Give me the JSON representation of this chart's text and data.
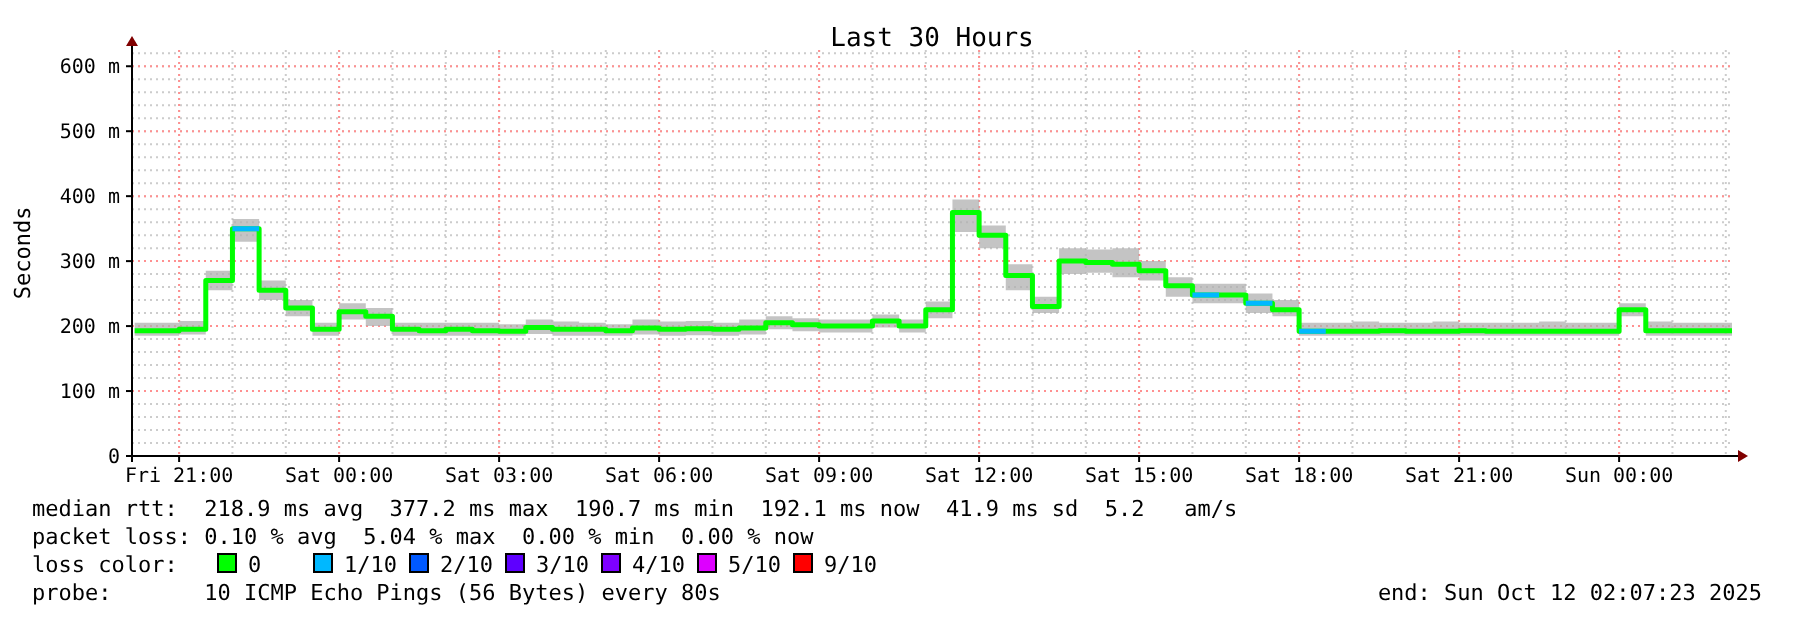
{
  "chart_data": {
    "type": "step",
    "title": "Last 30 Hours",
    "ylabel": "Seconds",
    "legend_title": "loss color:",
    "legend": "bottom",
    "grid": true,
    "annotations": [
      "median rtt:  218.9 ms avg  377.2 ms max  190.7 ms min  192.1 ms now  41.9 ms sd  5.2   am/s",
      "packet loss: 0.10 % avg  5.04 % max  0.00 % min  0.00 % now",
      "probe:       10 ICMP Echo Pings (56 Bytes) every 80s",
      "end: Sun Oct 12 02:07:23 2025"
    ],
    "x": [
      "2025-10-10T20:10",
      "2025-10-10T20:30",
      "2025-10-10T21:00",
      "2025-10-10T21:30",
      "2025-10-10T22:00",
      "2025-10-10T22:30",
      "2025-10-10T23:00",
      "2025-10-10T23:30",
      "2025-10-11T00:00",
      "2025-10-11T00:30",
      "2025-10-11T01:00",
      "2025-10-11T01:30",
      "2025-10-11T02:00",
      "2025-10-11T02:30",
      "2025-10-11T03:00",
      "2025-10-11T03:30",
      "2025-10-11T04:00",
      "2025-10-11T04:30",
      "2025-10-11T05:00",
      "2025-10-11T05:30",
      "2025-10-11T06:00",
      "2025-10-11T06:30",
      "2025-10-11T07:00",
      "2025-10-11T07:30",
      "2025-10-11T08:00",
      "2025-10-11T08:30",
      "2025-10-11T09:00",
      "2025-10-11T09:30",
      "2025-10-11T10:00",
      "2025-10-11T10:30",
      "2025-10-11T11:00",
      "2025-10-11T11:30",
      "2025-10-11T12:00",
      "2025-10-11T12:30",
      "2025-10-11T13:00",
      "2025-10-11T13:30",
      "2025-10-11T14:00",
      "2025-10-11T14:30",
      "2025-10-11T15:00",
      "2025-10-11T15:30",
      "2025-10-11T16:00",
      "2025-10-11T16:30",
      "2025-10-11T17:00",
      "2025-10-11T17:30",
      "2025-10-11T18:00",
      "2025-10-11T18:30",
      "2025-10-11T19:00",
      "2025-10-11T19:30",
      "2025-10-11T20:00",
      "2025-10-11T20:30",
      "2025-10-11T21:00",
      "2025-10-11T21:30",
      "2025-10-11T22:00",
      "2025-10-11T22:30",
      "2025-10-11T23:00",
      "2025-10-11T23:30",
      "2025-10-12T00:00",
      "2025-10-12T00:30",
      "2025-10-12T01:00",
      "2025-10-12T01:30",
      "2025-10-12T02:07"
    ],
    "xlim": [
      "2025-10-10T20:07",
      "2025-10-12T02:07"
    ],
    "xticks": [
      {
        "value": "2025-10-10T21:00",
        "label": "Fri 21:00"
      },
      {
        "value": "2025-10-11T00:00",
        "label": "Sat 00:00"
      },
      {
        "value": "2025-10-11T03:00",
        "label": "Sat 03:00"
      },
      {
        "value": "2025-10-11T06:00",
        "label": "Sat 06:00"
      },
      {
        "value": "2025-10-11T09:00",
        "label": "Sat 09:00"
      },
      {
        "value": "2025-10-11T12:00",
        "label": "Sat 12:00"
      },
      {
        "value": "2025-10-11T15:00",
        "label": "Sat 15:00"
      },
      {
        "value": "2025-10-11T18:00",
        "label": "Sat 18:00"
      },
      {
        "value": "2025-10-11T21:00",
        "label": "Sat 21:00"
      },
      {
        "value": "2025-10-12T00:00",
        "label": "Sun 00:00"
      }
    ],
    "ylim": [
      0,
      625
    ],
    "yticks": [
      {
        "value": 0,
        "label": "0"
      },
      {
        "value": 100,
        "label": "100 m"
      },
      {
        "value": 200,
        "label": "200 m"
      },
      {
        "value": 300,
        "label": "300 m"
      },
      {
        "value": 400,
        "label": "400 m"
      },
      {
        "value": 500,
        "label": "500 m"
      },
      {
        "value": 600,
        "label": "600 m"
      }
    ],
    "series": [
      {
        "name": "0",
        "color": "#00ff00",
        "values": [
          193,
          193,
          195,
          270,
          350,
          255,
          228,
          195,
          222,
          215,
          195,
          193,
          195,
          193,
          192,
          198,
          195,
          195,
          193,
          197,
          195,
          196,
          195,
          197,
          205,
          202,
          200,
          200,
          208,
          200,
          225,
          375,
          340,
          278,
          230,
          300,
          298,
          295,
          285,
          262,
          248,
          248,
          235,
          225,
          192,
          192,
          192,
          193,
          192,
          192,
          193,
          192,
          192,
          192,
          192,
          192,
          225,
          193,
          193,
          193,
          193
        ],
        "lower": [
          185,
          185,
          187,
          255,
          330,
          240,
          215,
          185,
          210,
          200,
          185,
          185,
          185,
          185,
          185,
          188,
          185,
          185,
          185,
          187,
          185,
          186,
          185,
          187,
          195,
          192,
          190,
          190,
          198,
          190,
          212,
          345,
          320,
          255,
          220,
          280,
          282,
          275,
          270,
          245,
          235,
          235,
          220,
          215,
          185,
          185,
          185,
          185,
          185,
          185,
          185,
          185,
          185,
          185,
          185,
          185,
          215,
          185,
          185,
          185,
          185
        ],
        "upper": [
          205,
          205,
          208,
          285,
          365,
          270,
          240,
          205,
          235,
          228,
          205,
          205,
          205,
          205,
          203,
          210,
          207,
          205,
          203,
          210,
          207,
          208,
          205,
          210,
          215,
          212,
          210,
          210,
          218,
          210,
          238,
          395,
          355,
          295,
          245,
          320,
          318,
          320,
          300,
          275,
          265,
          265,
          250,
          240,
          205,
          205,
          207,
          205,
          205,
          207,
          205,
          205,
          205,
          207,
          205,
          205,
          235,
          207,
          205,
          205,
          205
        ]
      },
      {
        "name": "1/10",
        "color": "#00b8ff",
        "x": [
          "2025-10-10T22:00",
          "2025-10-10T22:30",
          "2025-10-10T22:31",
          "2025-10-11T16:00",
          "2025-10-11T16:30",
          "2025-10-11T16:31",
          "2025-10-11T17:00",
          "2025-10-11T17:30",
          "2025-10-11T17:31",
          "2025-10-11T18:00",
          "2025-10-11T18:30"
        ],
        "values": [
          350,
          350,
          null,
          248,
          248,
          null,
          235,
          235,
          null,
          192,
          192
        ]
      },
      {
        "name": "2/10",
        "color": "#0059ff",
        "values": [
          null,
          null,
          null,
          null,
          null,
          null,
          null,
          null,
          null,
          null,
          null,
          null,
          null,
          null,
          null,
          null,
          null,
          null,
          null,
          null,
          null,
          null,
          null,
          null,
          null,
          null,
          null,
          null,
          null,
          null,
          null,
          null,
          null,
          null,
          null,
          null,
          null,
          null,
          null,
          null,
          null,
          null,
          null,
          null,
          null,
          null,
          null,
          null,
          null,
          null,
          null,
          null,
          null,
          null,
          null,
          null,
          null,
          null,
          null,
          null,
          null
        ]
      },
      {
        "name": "3/10",
        "color": "#5e00ff",
        "values": [
          null,
          null,
          null,
          null,
          null,
          null,
          null,
          null,
          null,
          null,
          null,
          null,
          null,
          null,
          null,
          null,
          null,
          null,
          null,
          null,
          null,
          null,
          null,
          null,
          null,
          null,
          null,
          null,
          null,
          null,
          null,
          null,
          null,
          null,
          null,
          null,
          null,
          null,
          null,
          null,
          null,
          null,
          null,
          null,
          null,
          null,
          null,
          null,
          null,
          null,
          null,
          null,
          null,
          null,
          null,
          null,
          null,
          null,
          null,
          null,
          null
        ]
      },
      {
        "name": "4/10",
        "color": "#7e00ff",
        "values": [
          null,
          null,
          null,
          null,
          null,
          null,
          null,
          null,
          null,
          null,
          null,
          null,
          null,
          null,
          null,
          null,
          null,
          null,
          null,
          null,
          null,
          null,
          null,
          null,
          null,
          null,
          null,
          null,
          null,
          null,
          null,
          null,
          null,
          null,
          null,
          null,
          null,
          null,
          null,
          null,
          null,
          null,
          null,
          null,
          null,
          null,
          null,
          null,
          null,
          null,
          null,
          null,
          null,
          null,
          null,
          null,
          null,
          null,
          null,
          null,
          null
        ]
      },
      {
        "name": "5/10",
        "color": "#dd00ff",
        "values": [
          null,
          null,
          null,
          null,
          null,
          null,
          null,
          null,
          null,
          null,
          null,
          null,
          null,
          null,
          null,
          null,
          null,
          null,
          null,
          null,
          null,
          null,
          null,
          null,
          null,
          null,
          null,
          null,
          null,
          null,
          null,
          null,
          null,
          null,
          null,
          null,
          null,
          null,
          null,
          null,
          null,
          null,
          null,
          null,
          null,
          null,
          null,
          null,
          null,
          null,
          null,
          null,
          null,
          null,
          null,
          null,
          null,
          null,
          null,
          null,
          null
        ]
      },
      {
        "name": "9/10",
        "color": "#ff0000",
        "values": [
          null,
          null,
          null,
          null,
          null,
          null,
          null,
          null,
          null,
          null,
          null,
          null,
          null,
          null,
          null,
          null,
          null,
          null,
          null,
          null,
          null,
          null,
          null,
          null,
          null,
          null,
          null,
          null,
          null,
          null,
          null,
          null,
          null,
          null,
          null,
          null,
          null,
          null,
          null,
          null,
          null,
          null,
          null,
          null,
          null,
          null,
          null,
          null,
          null,
          null,
          null,
          null,
          null,
          null,
          null,
          null,
          null,
          null,
          null,
          null,
          null
        ]
      }
    ]
  }
}
